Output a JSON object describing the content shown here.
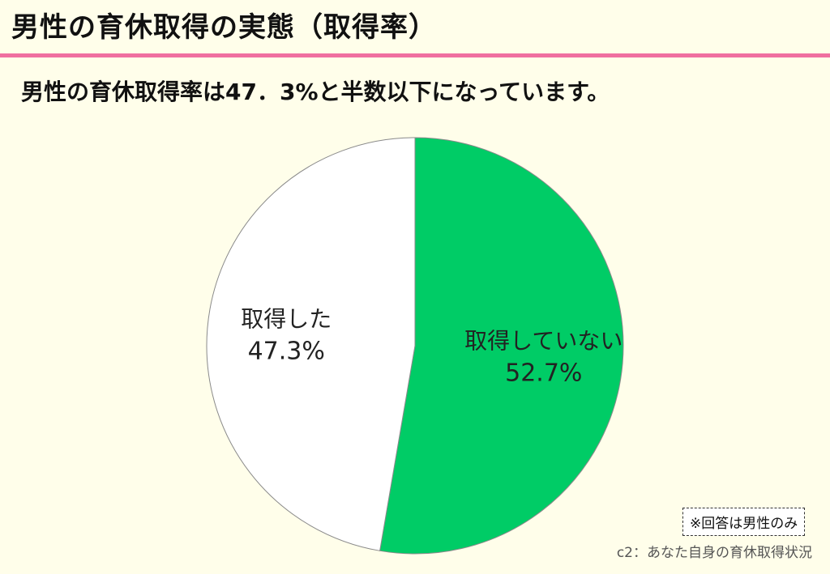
{
  "header": {
    "title": "男性の育休取得の実態（取得率）",
    "subtitle": "男性の育休取得率は47．3%と半数以下になっています。"
  },
  "colors": {
    "accent_line": "#f06fa0",
    "slice_not_taken": "#00cc66",
    "slice_taken": "#ffffff",
    "background": "#fffeea"
  },
  "chart_data": {
    "type": "pie",
    "title": "",
    "start_angle_deg": 0,
    "direction": "clockwise",
    "slices": [
      {
        "label": "取得していない",
        "value": 52.7,
        "display": "52.7%",
        "color": "#00cc66"
      },
      {
        "label": "取得した",
        "value": 47.3,
        "display": "47.3%",
        "color": "#ffffff"
      }
    ]
  },
  "footer": {
    "note": "※回答は男性のみ",
    "source": "c2：あなた自身の育休取得状況"
  }
}
